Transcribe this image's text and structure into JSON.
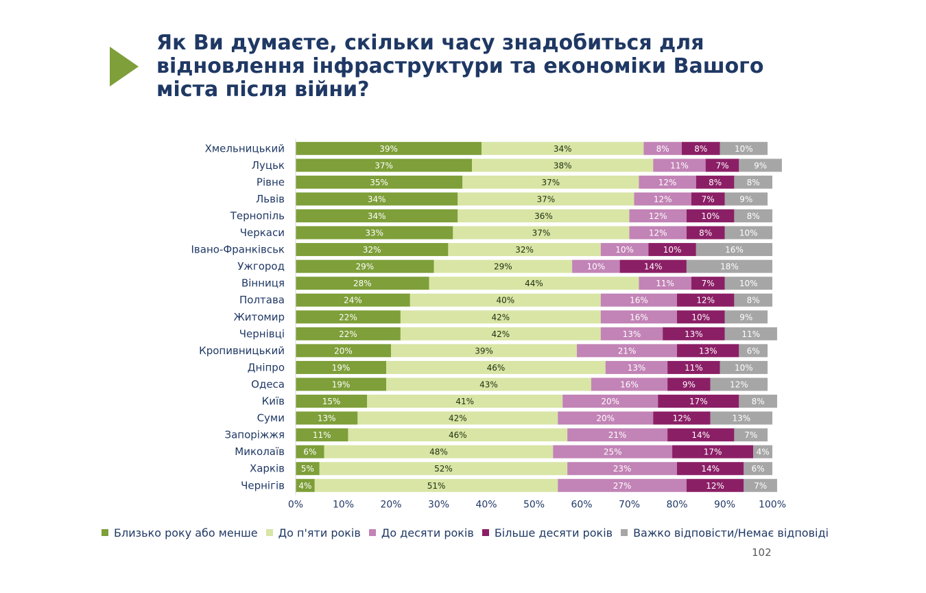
{
  "slide": {
    "title": "Як Ви думаєте, скільки часу знадобиться для відновлення інфраструктури та економіки Вашого міста після війни?",
    "page_number": "102"
  },
  "chart_data": {
    "type": "bar",
    "orientation": "horizontal",
    "stacked": true,
    "title": "",
    "xlabel": "",
    "ylabel": "",
    "xlim": [
      0,
      100
    ],
    "x_ticks": [
      "0%",
      "10%",
      "20%",
      "30%",
      "40%",
      "50%",
      "60%",
      "70%",
      "80%",
      "90%",
      "100%"
    ],
    "grid": false,
    "legend_position": "bottom",
    "categories": [
      "Хмельницький",
      "Луцьк",
      "Рівне",
      "Львів",
      "Тернопіль",
      "Черкаси",
      "Івано-Франківськ",
      "Ужгород",
      "Вінниця",
      "Полтава",
      "Житомир",
      "Чернівці",
      "Кропивницький",
      "Дніпро",
      "Одеса",
      "Київ",
      "Суми",
      "Запоріжжя",
      "Миколаїв",
      "Харків",
      "Чернігів"
    ],
    "series": [
      {
        "name": "Близько року або менше",
        "color": "#7e9f39",
        "label_color": "#ffffff",
        "values": [
          39,
          37,
          35,
          34,
          34,
          33,
          32,
          29,
          28,
          24,
          22,
          22,
          20,
          19,
          19,
          15,
          13,
          11,
          6,
          5,
          4
        ]
      },
      {
        "name": "До п'яти років",
        "color": "#d8e5a5",
        "label_color": "#1f2f10",
        "values": [
          34,
          38,
          37,
          37,
          36,
          37,
          32,
          29,
          44,
          40,
          42,
          42,
          39,
          46,
          43,
          41,
          42,
          46,
          48,
          52,
          51
        ]
      },
      {
        "name": "До десяти років",
        "color": "#c283b6",
        "label_color": "#ffffff",
        "values": [
          8,
          11,
          12,
          12,
          12,
          12,
          10,
          10,
          11,
          16,
          16,
          13,
          21,
          13,
          16,
          20,
          20,
          21,
          25,
          23,
          27
        ]
      },
      {
        "name": "Більше десяти років",
        "color": "#8b1f66",
        "label_color": "#ffffff",
        "values": [
          8,
          7,
          8,
          7,
          10,
          8,
          10,
          14,
          7,
          12,
          10,
          13,
          13,
          11,
          9,
          17,
          12,
          14,
          17,
          14,
          12
        ]
      },
      {
        "name": "Важко відповісти/Немає відповіді",
        "color": "#a6a6a6",
        "label_color": "#ffffff",
        "values": [
          10,
          9,
          8,
          9,
          8,
          10,
          16,
          18,
          10,
          8,
          9,
          11,
          6,
          10,
          12,
          8,
          13,
          7,
          4,
          6,
          7
        ]
      }
    ],
    "value_suffix": "%"
  }
}
